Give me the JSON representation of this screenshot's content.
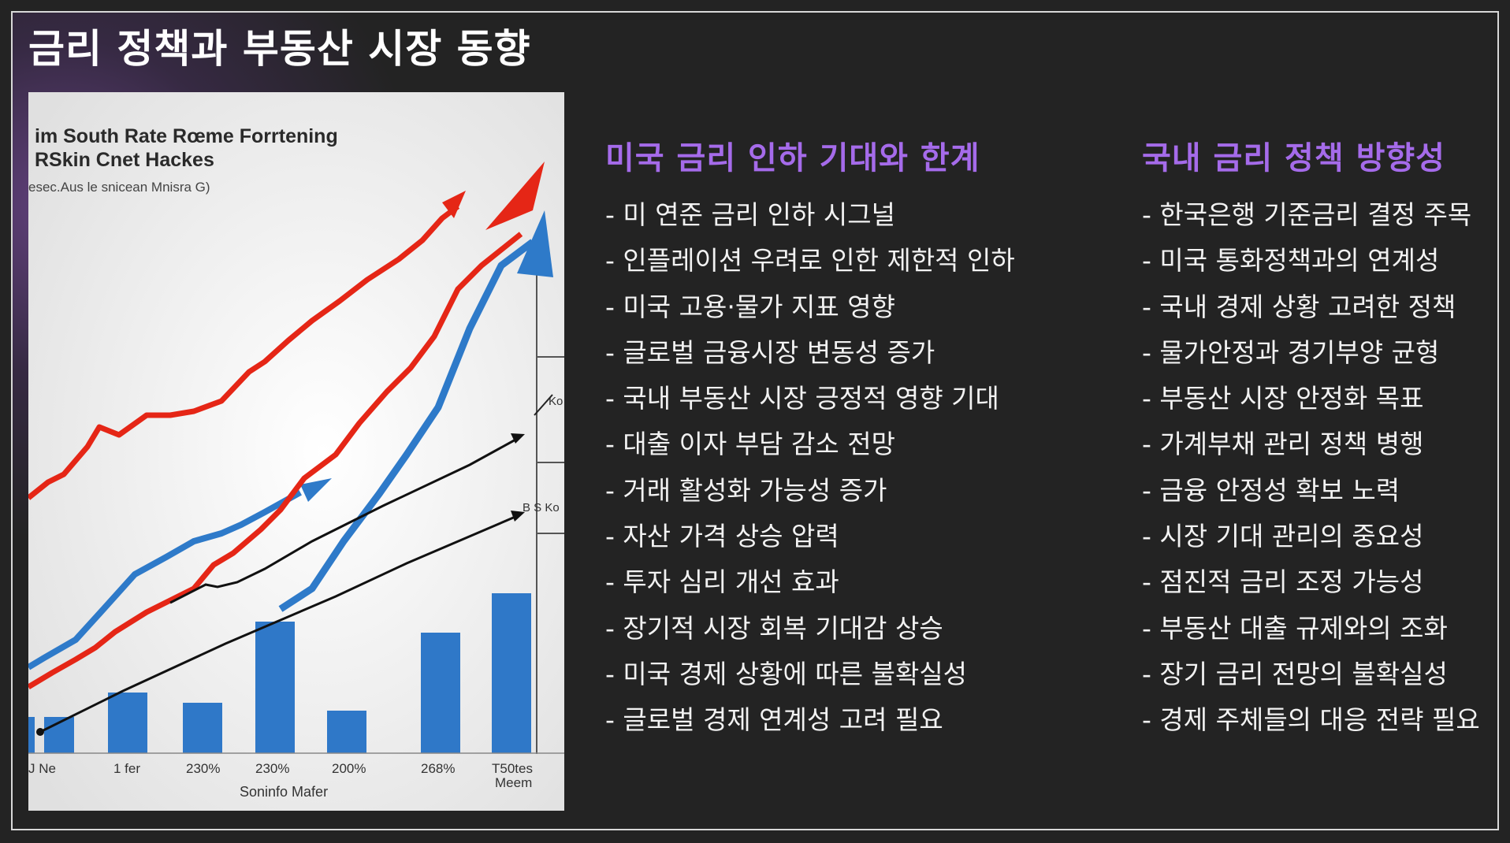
{
  "page": {
    "title": "금리 정책과 부동산 시장 동향"
  },
  "figure": {
    "caption_line1": "im South Rate Rœme Forrtening",
    "caption_line2": "RSkin Cnet Hackes",
    "caption_line3": "esec.Aus le snicean Mnisra G)",
    "side_label_1": "Ko",
    "side_label_2": "B S Ko",
    "x_labels": [
      "J Ne",
      "1 fer",
      "230%",
      "230%",
      "200%",
      "268%",
      "T50tes"
    ],
    "x_sub_label": "Meem",
    "x_title": "Soninfo Mafer",
    "colors": {
      "red_line": "#e52616",
      "blue_line": "#2e7ac9",
      "bars": "#2f78c8",
      "arrows": "#111111",
      "background": "#ececec"
    }
  },
  "left_column": {
    "heading": "미국 금리 인하 기대와 한계",
    "items": [
      "- 미 연준 금리 인하 시그널",
      "- 인플레이션 우려로 인한 제한적 인하",
      "- 미국 고용·물가 지표 영향",
      "- 글로벌 금융시장 변동성 증가",
      "- 국내 부동산 시장 긍정적 영향 기대",
      "- 대출 이자 부담 감소 전망",
      "- 거래 활성화 가능성 증가",
      "- 자산 가격 상승 압력",
      "- 투자 심리 개선 효과",
      "- 장기적 시장 회복 기대감 상승",
      "- 미국 경제 상황에 따른 불확실성",
      "- 글로벌 경제 연계성 고려 필요"
    ]
  },
  "right_column": {
    "heading": "국내 금리 정책 방향성",
    "items": [
      "- 한국은행 기준금리 결정 주목",
      "- 미국 통화정책과의 연계성",
      "- 국내 경제 상황 고려한 정책",
      "- 물가안정과 경기부양 균형",
      "- 부동산 시장 안정화 목표",
      "- 가계부채 관리 정책 병행",
      "- 금융 안정성 확보 노력",
      "- 시장 기대 관리의 중요성",
      "- 점진적 금리 조정 가능성",
      "- 부동산 대출 규제와의 조화",
      "- 장기 금리 전망의 불확실성",
      "- 경제 주체들의 대응 전략 필요"
    ]
  }
}
